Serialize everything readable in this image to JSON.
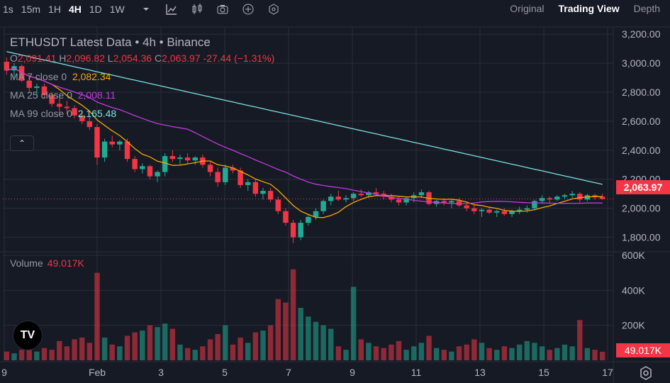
{
  "toolbar": {
    "timeframes": [
      "1s",
      "15m",
      "1H",
      "4H",
      "1D",
      "1W"
    ],
    "active_timeframe": "4H",
    "icons": [
      "chevron-down-icon",
      "line-chart-icon",
      "candles-icon",
      "camera-icon",
      "plus-circle-icon",
      "indicator-icon"
    ],
    "views": [
      "Original",
      "Trading View",
      "Depth"
    ],
    "active_view": "Trading View"
  },
  "legend": {
    "title": "ETHUSDT Latest Data • 4h • Binance",
    "o_label": "O",
    "o": "2,091.41",
    "h_label": "H",
    "h": "2,096.82",
    "l_label": "L",
    "l": "2,054.36",
    "c_label": "C",
    "c": "2,063.97",
    "change": "-27.44 (−1.31%)",
    "ma7_label": "MA 7 close 0",
    "ma7": "2,082.34",
    "ma25_label": "MA 25 close 0",
    "ma25": "2,008.11",
    "ma99_label": "MA 99 close 0",
    "ma99": "2,165.48"
  },
  "volume_legend": {
    "label": "Volume",
    "value": "49.017K"
  },
  "price_tag": "2,063.97",
  "volume_tag": "49.017K",
  "price_axis": [
    "3,200.00",
    "3,000.00",
    "2,800.00",
    "2,600.00",
    "2,400.00",
    "2,200.00",
    "2,000.00",
    "1,800.00"
  ],
  "volume_axis": [
    "600K",
    "400K",
    "200K"
  ],
  "time_axis": [
    "9",
    "Feb",
    "3",
    "5",
    "7",
    "9",
    "11",
    "13",
    "15",
    "17"
  ],
  "colors": {
    "up": "#22ab94",
    "down": "#f23645",
    "ma7": "#f7a600",
    "ma25": "#c13bdc",
    "ma99": "#7ce0e0",
    "grid": "#2a2e39",
    "bg": "#161a25"
  },
  "chart_data": {
    "type": "candlestick",
    "price_range": [
      1700,
      3250
    ],
    "volume_range": [
      0,
      600000
    ],
    "candles": [
      [
        3010,
        3040,
        2920,
        2950,
        50000
      ],
      [
        2950,
        3000,
        2900,
        2980,
        40000
      ],
      [
        2980,
        2990,
        2870,
        2880,
        60000
      ],
      [
        2880,
        2920,
        2800,
        2830,
        90000
      ],
      [
        2830,
        2860,
        2780,
        2840,
        50000
      ],
      [
        2840,
        2860,
        2760,
        2780,
        70000
      ],
      [
        2780,
        2800,
        2700,
        2720,
        60000
      ],
      [
        2720,
        2760,
        2660,
        2700,
        110000
      ],
      [
        2700,
        2740,
        2650,
        2690,
        80000
      ],
      [
        2690,
        2710,
        2620,
        2640,
        120000
      ],
      [
        2640,
        2660,
        2580,
        2600,
        130000
      ],
      [
        2600,
        2630,
        2540,
        2560,
        100000
      ],
      [
        2560,
        2580,
        2300,
        2350,
        500000
      ],
      [
        2350,
        2480,
        2320,
        2460,
        130000
      ],
      [
        2460,
        2500,
        2420,
        2440,
        90000
      ],
      [
        2440,
        2470,
        2400,
        2460,
        80000
      ],
      [
        2460,
        2480,
        2320,
        2340,
        140000
      ],
      [
        2340,
        2360,
        2250,
        2270,
        160000
      ],
      [
        2270,
        2310,
        2240,
        2290,
        170000
      ],
      [
        2290,
        2300,
        2200,
        2220,
        200000
      ],
      [
        2220,
        2260,
        2180,
        2250,
        190000
      ],
      [
        2250,
        2380,
        2220,
        2360,
        210000
      ],
      [
        2360,
        2400,
        2320,
        2340,
        180000
      ],
      [
        2340,
        2370,
        2300,
        2350,
        90000
      ],
      [
        2350,
        2380,
        2310,
        2330,
        70000
      ],
      [
        2330,
        2360,
        2300,
        2350,
        60000
      ],
      [
        2350,
        2370,
        2280,
        2300,
        80000
      ],
      [
        2300,
        2320,
        2220,
        2250,
        120000
      ],
      [
        2250,
        2280,
        2150,
        2180,
        150000
      ],
      [
        2180,
        2300,
        2160,
        2280,
        200000
      ],
      [
        2280,
        2300,
        2240,
        2260,
        90000
      ],
      [
        2260,
        2280,
        2140,
        2160,
        130000
      ],
      [
        2160,
        2200,
        2120,
        2180,
        100000
      ],
      [
        2180,
        2200,
        2080,
        2100,
        160000
      ],
      [
        2100,
        2140,
        2060,
        2120,
        170000
      ],
      [
        2120,
        2140,
        2040,
        2060,
        200000
      ],
      [
        2060,
        2080,
        1960,
        1980,
        350000
      ],
      [
        1980,
        2000,
        1880,
        1900,
        330000
      ],
      [
        1900,
        1920,
        1760,
        1800,
        520000
      ],
      [
        1800,
        1920,
        1780,
        1900,
        300000
      ],
      [
        1900,
        1960,
        1880,
        1940,
        250000
      ],
      [
        1940,
        2000,
        1920,
        1980,
        220000
      ],
      [
        1980,
        2060,
        1960,
        2050,
        200000
      ],
      [
        2050,
        2100,
        2020,
        2080,
        180000
      ],
      [
        2080,
        2120,
        2050,
        2060,
        80000
      ],
      [
        2060,
        2090,
        2040,
        2070,
        60000
      ],
      [
        2070,
        2110,
        2050,
        2100,
        420000
      ],
      [
        2100,
        2130,
        2080,
        2090,
        120000
      ],
      [
        2090,
        2120,
        2070,
        2110,
        100000
      ],
      [
        2110,
        2140,
        2090,
        2100,
        80000
      ],
      [
        2100,
        2120,
        2060,
        2080,
        70000
      ],
      [
        2080,
        2100,
        2040,
        2060,
        90000
      ],
      [
        2060,
        2080,
        2020,
        2040,
        110000
      ],
      [
        2040,
        2080,
        2020,
        2070,
        60000
      ],
      [
        2070,
        2110,
        2040,
        2090,
        80000
      ],
      [
        2090,
        2130,
        2070,
        2110,
        100000
      ],
      [
        2110,
        2120,
        2020,
        2030,
        140000
      ],
      [
        2030,
        2060,
        2010,
        2050,
        70000
      ],
      [
        2050,
        2070,
        2020,
        2040,
        60000
      ],
      [
        2040,
        2060,
        2000,
        2050,
        50000
      ],
      [
        2050,
        2070,
        2010,
        2020,
        80000
      ],
      [
        2020,
        2040,
        1980,
        2000,
        90000
      ],
      [
        2000,
        2020,
        1960,
        1980,
        120000
      ],
      [
        1980,
        2000,
        1940,
        1990,
        100000
      ],
      [
        1990,
        2010,
        1960,
        1970,
        70000
      ],
      [
        1970,
        1990,
        1940,
        1980,
        60000
      ],
      [
        1980,
        2000,
        1950,
        1960,
        80000
      ],
      [
        1960,
        1990,
        1940,
        1980,
        70000
      ],
      [
        1980,
        2010,
        1960,
        1990,
        90000
      ],
      [
        1990,
        2020,
        1970,
        2000,
        110000
      ],
      [
        2000,
        2060,
        1990,
        2050,
        100000
      ],
      [
        2050,
        2090,
        2030,
        2070,
        80000
      ],
      [
        2070,
        2080,
        2040,
        2060,
        60000
      ],
      [
        2060,
        2090,
        2050,
        2080,
        70000
      ],
      [
        2080,
        2100,
        2060,
        2090,
        90000
      ],
      [
        2090,
        2120,
        2070,
        2100,
        80000
      ],
      [
        2100,
        2110,
        2040,
        2060,
        230000
      ],
      [
        2060,
        2100,
        2050,
        2090,
        70000
      ],
      [
        2090,
        2100,
        2060,
        2080,
        60000
      ],
      [
        2080,
        2100,
        2060,
        2064,
        49017
      ]
    ]
  }
}
